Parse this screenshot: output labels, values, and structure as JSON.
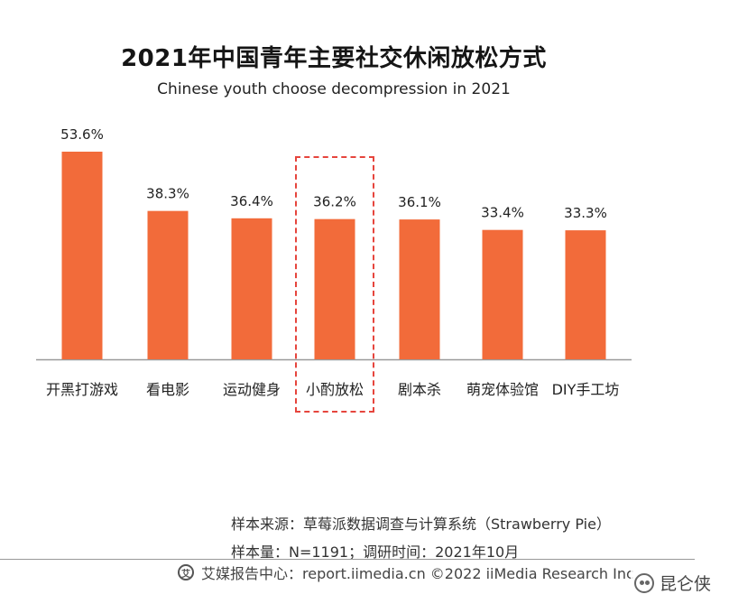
{
  "header": {
    "title": "2021年中国青年主要社交休闲放松方式",
    "subtitle": "Chinese youth choose decompression in 2021"
  },
  "chart_data": {
    "type": "bar",
    "title": "2021年中国青年主要社交休闲放松方式",
    "subtitle": "Chinese youth choose decompression in 2021",
    "categories": [
      "开黑打游戏",
      "看电影",
      "运动健身",
      "小酌放松",
      "剧本杀",
      "萌宠体验馆",
      "DIY手工坊"
    ],
    "values": [
      53.6,
      38.3,
      36.4,
      36.2,
      36.1,
      33.4,
      33.3
    ],
    "value_labels": [
      "53.6%",
      "38.3%",
      "36.4%",
      "36.2%",
      "36.1%",
      "33.4%",
      "33.3%"
    ],
    "unit": "%",
    "ylim": [
      0,
      60
    ],
    "grid": false,
    "bar_color": "#f26b3a",
    "highlight_index": 3,
    "highlight_color": "#e6453d"
  },
  "source": {
    "line1": "样本来源：草莓派数据调查与计算系统（Strawberry Pie）",
    "line2": "样本量：N=1191；调研时间：2021年10月"
  },
  "footer": {
    "text": "艾媒报告中心：report.iimedia.cn  ©2022  iiMedia Research  Inc"
  },
  "watermark": {
    "text": "昆仑侠"
  }
}
